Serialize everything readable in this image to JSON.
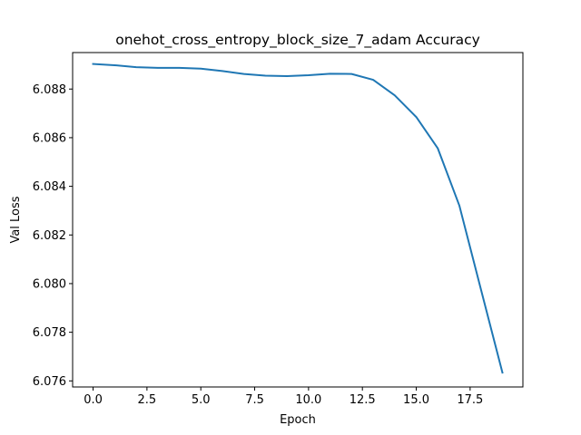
{
  "chart_data": {
    "type": "line",
    "title": "onehot_cross_entropy_block_size_7_adam Accuracy",
    "xlabel": "Epoch",
    "ylabel": "Val Loss",
    "xlim": [
      -0.95,
      19.95
    ],
    "ylim": [
      6.07575,
      6.0895
    ],
    "xticks": [
      0.0,
      2.5,
      5.0,
      7.5,
      10.0,
      12.5,
      15.0,
      17.5
    ],
    "xtick_labels": [
      "0.0",
      "2.5",
      "5.0",
      "7.5",
      "10.0",
      "12.5",
      "15.0",
      "17.5"
    ],
    "yticks": [
      6.076,
      6.078,
      6.08,
      6.082,
      6.084,
      6.086,
      6.088
    ],
    "ytick_labels": [
      "6.076",
      "6.078",
      "6.080",
      "6.082",
      "6.084",
      "6.086",
      "6.088"
    ],
    "grid": false,
    "legend": "none",
    "series": [
      {
        "color": "#1f77b4",
        "x": [
          0,
          1,
          2,
          3,
          4,
          5,
          6,
          7,
          8,
          9,
          10,
          11,
          12,
          13,
          14,
          15,
          16,
          17,
          18,
          19
        ],
        "y": [
          6.08903,
          6.08898,
          6.0889,
          6.08887,
          6.08887,
          6.08884,
          6.08874,
          6.08862,
          6.08855,
          6.08853,
          6.08857,
          6.08863,
          6.08862,
          6.08838,
          6.08774,
          6.08685,
          6.08556,
          6.08321,
          6.07977,
          6.07634
        ]
      }
    ]
  }
}
